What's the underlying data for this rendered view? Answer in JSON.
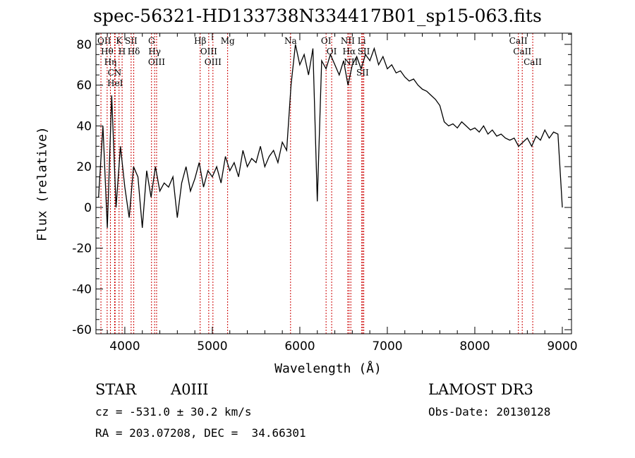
{
  "chart_data": {
    "type": "line",
    "title": "spec-56321-HD133738N334417B01_sp15-063.fits",
    "xlabel": "Wavelength (Å)",
    "ylabel": "Flux (relative)",
    "xlim": [
      3670,
      9105
    ],
    "ylim": [
      -62,
      85.5
    ],
    "xticks": [
      4000,
      5000,
      6000,
      7000,
      8000,
      9000
    ],
    "yticks": [
      -60,
      -40,
      -20,
      0,
      20,
      40,
      60,
      80
    ],
    "x_start": 3700,
    "x_step": 50,
    "flux": [
      5,
      40,
      -10,
      55,
      0,
      30,
      10,
      -5,
      20,
      15,
      -10,
      18,
      5,
      20,
      8,
      12,
      10,
      15,
      -5,
      12,
      20,
      8,
      14,
      22,
      10,
      18,
      15,
      20,
      12,
      25,
      18,
      22,
      15,
      28,
      20,
      24,
      22,
      30,
      20,
      25,
      28,
      22,
      32,
      28,
      60,
      80,
      70,
      75,
      65,
      78,
      3,
      72,
      68,
      75,
      70,
      65,
      72,
      60,
      70,
      74,
      68,
      75,
      72,
      78,
      70,
      74,
      68,
      70,
      66,
      67,
      64,
      62,
      63,
      60,
      58,
      57,
      55,
      53,
      50,
      42,
      40,
      41,
      39,
      42,
      40,
      38,
      39,
      37,
      40,
      36,
      38,
      35,
      36,
      34,
      33,
      34,
      30,
      32,
      34,
      30,
      35,
      33,
      38,
      34,
      37,
      36,
      0
    ],
    "lines": [
      {
        "name": "Hθ",
        "wl": 3798
      },
      {
        "name": "K",
        "wl": 3934
      },
      {
        "name": "Hδ",
        "wl": 4102
      },
      {
        "name": "OIII",
        "wl": 4363
      },
      {
        "name": "OIII",
        "wl": 5007
      },
      {
        "name": "OI",
        "wl": 6300
      },
      {
        "name": "Hα",
        "wl": 6563
      },
      {
        "name": "SII",
        "wl": 6717
      },
      {
        "name": "CaII",
        "wl": 8498
      },
      {
        "name": "OII",
        "wl": 3727
      },
      {
        "name": "HeI",
        "wl": 3889
      },
      {
        "name": "SII",
        "wl": 4072
      },
      {
        "name": "Hγ",
        "wl": 4340
      },
      {
        "name": "OIII",
        "wl": 4959
      },
      {
        "name": "Na",
        "wl": 5894
      },
      {
        "name": "NII",
        "wl": 6583
      },
      {
        "name": "Li",
        "wl": 6708
      },
      {
        "name": "CaII",
        "wl": 8542
      },
      {
        "name": "CN",
        "wl": 3883
      },
      {
        "name": "Hη",
        "wl": 3835
      },
      {
        "name": "H",
        "wl": 3969
      },
      {
        "name": "G",
        "wl": 4305
      },
      {
        "name": "Hβ",
        "wl": 4861
      },
      {
        "name": "Mg",
        "wl": 5175
      },
      {
        "name": "OI",
        "wl": 6364
      },
      {
        "name": "NII",
        "wl": 6548
      },
      {
        "name": "SII",
        "wl": 6731
      },
      {
        "name": "CaII",
        "wl": 8662
      }
    ],
    "line_color": "#cc0000",
    "grid": false
  },
  "info": {
    "class": "STAR",
    "subclass": "A0III",
    "cz": "cz = -531.0 ± 30.2 km/s",
    "radec": "RA = 203.07208, DEC =  34.66301",
    "survey": "LAMOST DR3",
    "obsdate": "Obs-Date: 20130128"
  }
}
